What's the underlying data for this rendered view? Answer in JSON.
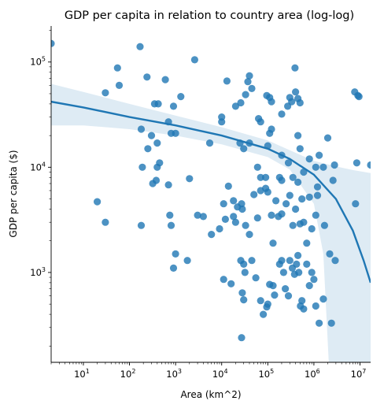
{
  "chart_data": {
    "type": "scatter",
    "title": "GDP per capita in relation to country area (log-log)",
    "xlabel": "Area (km^2)",
    "ylabel": "GDP per capita ($)",
    "xscale": "log",
    "yscale": "log",
    "xlim": [
      2,
      17000000
    ],
    "ylim": [
      140,
      220000
    ],
    "grid": false,
    "point_color": "#1f77b4",
    "fit_color": "#1f77b4",
    "band_color": "#1f77b4",
    "x_ticks": [
      {
        "base": "10",
        "exp": "1",
        "value": 10
      },
      {
        "base": "10",
        "exp": "2",
        "value": 100
      },
      {
        "base": "10",
        "exp": "3",
        "value": 1000
      },
      {
        "base": "10",
        "exp": "4",
        "value": 10000
      },
      {
        "base": "10",
        "exp": "5",
        "value": 100000
      },
      {
        "base": "10",
        "exp": "6",
        "value": 1000000
      },
      {
        "base": "10",
        "exp": "7",
        "value": 10000000
      }
    ],
    "y_ticks": [
      {
        "base": "10",
        "exp": "3",
        "value": 1000
      },
      {
        "base": "10",
        "exp": "4",
        "value": 10000
      },
      {
        "base": "10",
        "exp": "5",
        "value": 100000
      }
    ],
    "points": [
      [
        2,
        150000
      ],
      [
        30,
        51000
      ],
      [
        55,
        88000
      ],
      [
        60,
        60000
      ],
      [
        170,
        140000
      ],
      [
        240,
        72000
      ],
      [
        350,
        40000
      ],
      [
        420,
        40000
      ],
      [
        600,
        68000
      ],
      [
        900,
        38000
      ],
      [
        1300,
        47000
      ],
      [
        2600,
        105000
      ],
      [
        10000,
        30000
      ],
      [
        13000,
        66000
      ],
      [
        20000,
        38000
      ],
      [
        26000,
        41000
      ],
      [
        33000,
        49000
      ],
      [
        37000,
        65000
      ],
      [
        45000,
        56000
      ],
      [
        40000,
        74000
      ],
      [
        63000,
        29000
      ],
      [
        70000,
        27000
      ],
      [
        95000,
        48000
      ],
      [
        110000,
        46000
      ],
      [
        120000,
        42000
      ],
      [
        200000,
        32000
      ],
      [
        270000,
        38000
      ],
      [
        300000,
        46000
      ],
      [
        330000,
        42000
      ],
      [
        390000,
        88000
      ],
      [
        400000,
        52000
      ],
      [
        450000,
        45000
      ],
      [
        500000,
        41000
      ],
      [
        7700000,
        52000
      ],
      [
        9000000,
        48000
      ],
      [
        9500000,
        47000
      ],
      [
        180,
        23000
      ],
      [
        250,
        15000
      ],
      [
        300,
        20000
      ],
      [
        400,
        10000
      ],
      [
        450,
        11000
      ],
      [
        400,
        17000
      ],
      [
        700,
        27000
      ],
      [
        800,
        21000
      ],
      [
        1000,
        21000
      ],
      [
        5500,
        17000
      ],
      [
        10000,
        27000
      ],
      [
        25000,
        17000
      ],
      [
        30000,
        15000
      ],
      [
        40000,
        17000
      ],
      [
        60000,
        10000
      ],
      [
        70000,
        8000
      ],
      [
        90000,
        8000
      ],
      [
        100000,
        16000
      ],
      [
        110000,
        21000
      ],
      [
        120000,
        23000
      ],
      [
        180000,
        8000
      ],
      [
        200000,
        13000
      ],
      [
        280000,
        11000
      ],
      [
        350000,
        8000
      ],
      [
        450000,
        20000
      ],
      [
        500000,
        15000
      ],
      [
        800000,
        12000
      ],
      [
        1100000,
        10000
      ],
      [
        1200000,
        6500
      ],
      [
        1300000,
        13000
      ],
      [
        1600000,
        10000
      ],
      [
        2000000,
        19000
      ],
      [
        2600000,
        7500
      ],
      [
        2800000,
        10500
      ],
      [
        8500000,
        11000
      ],
      [
        17000000,
        10500
      ],
      [
        20,
        4700
      ],
      [
        30,
        3000
      ],
      [
        190,
        10000
      ],
      [
        320,
        7000
      ],
      [
        380,
        7500
      ],
      [
        700,
        6800
      ],
      [
        750,
        3500
      ],
      [
        800,
        2800
      ],
      [
        1000,
        1500
      ],
      [
        2000,
        7800
      ],
      [
        3000,
        3500
      ],
      [
        4000,
        3400
      ],
      [
        6000,
        2300
      ],
      [
        11000,
        4500
      ],
      [
        14000,
        6600
      ],
      [
        12000,
        3200
      ],
      [
        18000,
        3400
      ],
      [
        20000,
        3000
      ],
      [
        22000,
        4200
      ],
      [
        27000,
        4500
      ],
      [
        28000,
        4000
      ],
      [
        33000,
        2800
      ],
      [
        40000,
        2300
      ],
      [
        50000,
        5500
      ],
      [
        60000,
        3300
      ],
      [
        70000,
        6000
      ],
      [
        90000,
        6300
      ],
      [
        100000,
        5800
      ],
      [
        120000,
        3500
      ],
      [
        130000,
        1900
      ],
      [
        150000,
        4800
      ],
      [
        170000,
        3400
      ],
      [
        200000,
        3600
      ],
      [
        250000,
        4500
      ],
      [
        300000,
        5400
      ],
      [
        350000,
        2800
      ],
      [
        400000,
        4000
      ],
      [
        500000,
        2900
      ],
      [
        550000,
        5000
      ],
      [
        600000,
        3000
      ],
      [
        800000,
        5200
      ],
      [
        900000,
        2600
      ],
      [
        1100000,
        3500
      ],
      [
        1200000,
        5400
      ],
      [
        1700000,
        2800
      ],
      [
        8000000,
        4500
      ],
      [
        180,
        2800
      ],
      [
        9000,
        2600
      ],
      [
        18000,
        4800
      ],
      [
        200000,
        7500
      ],
      [
        450000,
        7200
      ],
      [
        600000,
        9000
      ],
      [
        900,
        1100
      ],
      [
        1800,
        1300
      ],
      [
        11000,
        860
      ],
      [
        16000,
        780
      ],
      [
        26000,
        1300
      ],
      [
        28000,
        640
      ],
      [
        30000,
        1200
      ],
      [
        32000,
        1000
      ],
      [
        30000,
        550
      ],
      [
        27000,
        240
      ],
      [
        45000,
        1300
      ],
      [
        55000,
        890
      ],
      [
        70000,
        540
      ],
      [
        80000,
        400
      ],
      [
        95000,
        470
      ],
      [
        100000,
        500
      ],
      [
        110000,
        770
      ],
      [
        130000,
        750
      ],
      [
        140000,
        610
      ],
      [
        180000,
        1200
      ],
      [
        200000,
        1300
      ],
      [
        220000,
        1000
      ],
      [
        240000,
        700
      ],
      [
        280000,
        600
      ],
      [
        300000,
        1300
      ],
      [
        340000,
        1100
      ],
      [
        380000,
        960
      ],
      [
        420000,
        1200
      ],
      [
        470000,
        1000
      ],
      [
        510000,
        480
      ],
      [
        550000,
        540
      ],
      [
        600000,
        450
      ],
      [
        700000,
        1200
      ],
      [
        800000,
        750
      ],
      [
        900000,
        1000
      ],
      [
        1000000,
        860
      ],
      [
        1100000,
        480
      ],
      [
        1300000,
        330
      ],
      [
        1600000,
        560
      ],
      [
        2400000,
        330
      ],
      [
        2900000,
        1300
      ],
      [
        2200000,
        1500
      ],
      [
        450000,
        1450
      ],
      [
        700000,
        1900
      ]
    ],
    "fit_line": [
      [
        2,
        42000
      ],
      [
        10,
        37000
      ],
      [
        100,
        30000
      ],
      [
        1000,
        25000
      ],
      [
        10000,
        20000
      ],
      [
        100000,
        15000
      ],
      [
        300000,
        12000
      ],
      [
        1000000,
        8500
      ],
      [
        3000000,
        5000
      ],
      [
        7000000,
        2500
      ],
      [
        12000000,
        1300
      ],
      [
        17000000,
        800
      ]
    ],
    "ci_upper": [
      [
        2,
        62000
      ],
      [
        10,
        52000
      ],
      [
        100,
        40000
      ],
      [
        1000,
        31000
      ],
      [
        10000,
        24000
      ],
      [
        100000,
        18000
      ],
      [
        300000,
        14500
      ],
      [
        1000000,
        11500
      ],
      [
        3000000,
        10200
      ],
      [
        7000000,
        9400
      ],
      [
        17000000,
        8800
      ]
    ],
    "ci_lower": [
      [
        2,
        25000
      ],
      [
        10,
        25000
      ],
      [
        100,
        23000
      ],
      [
        1000,
        20000
      ],
      [
        10000,
        16500
      ],
      [
        100000,
        12500
      ],
      [
        300000,
        9500
      ],
      [
        1000000,
        4500
      ],
      [
        1600000,
        1500
      ],
      [
        2100000,
        140
      ],
      [
        17000000,
        140
      ]
    ]
  }
}
